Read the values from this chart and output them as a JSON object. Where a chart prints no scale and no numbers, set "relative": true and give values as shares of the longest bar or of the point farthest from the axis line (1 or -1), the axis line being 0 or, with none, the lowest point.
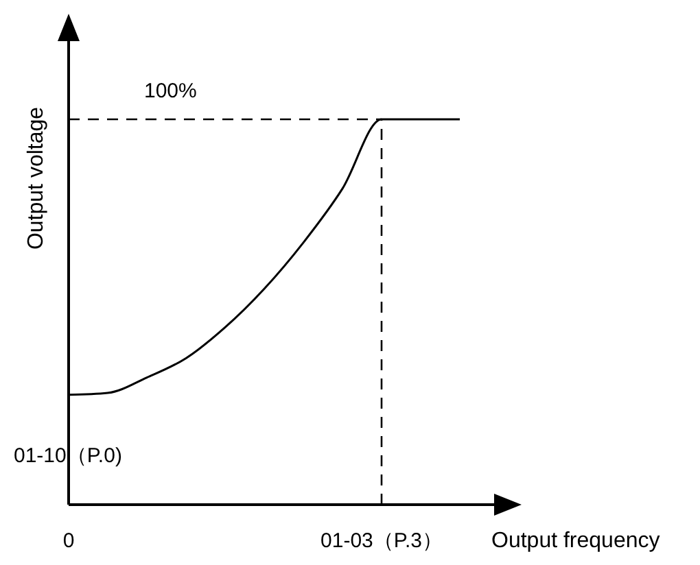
{
  "chart_data": {
    "type": "line",
    "relative": true,
    "xlabel": "Output frequency",
    "ylabel": "Output voltage",
    "categories": [
      null,
      null,
      null,
      null,
      null,
      null,
      null,
      null,
      null,
      null,
      null
    ],
    "series": [
      {
        "color": "#000000",
        "values": [
          0.285,
          0.29,
          0.33,
          0.38,
          0.46,
          0.56,
          0.68,
          0.82,
          1,
          1,
          1
        ]
      }
    ],
    "annotations": [
      "100%",
      "01-10（P.0)",
      "0",
      "01-03（P.3）"
    ],
    "grid": false,
    "marker": "none"
  }
}
